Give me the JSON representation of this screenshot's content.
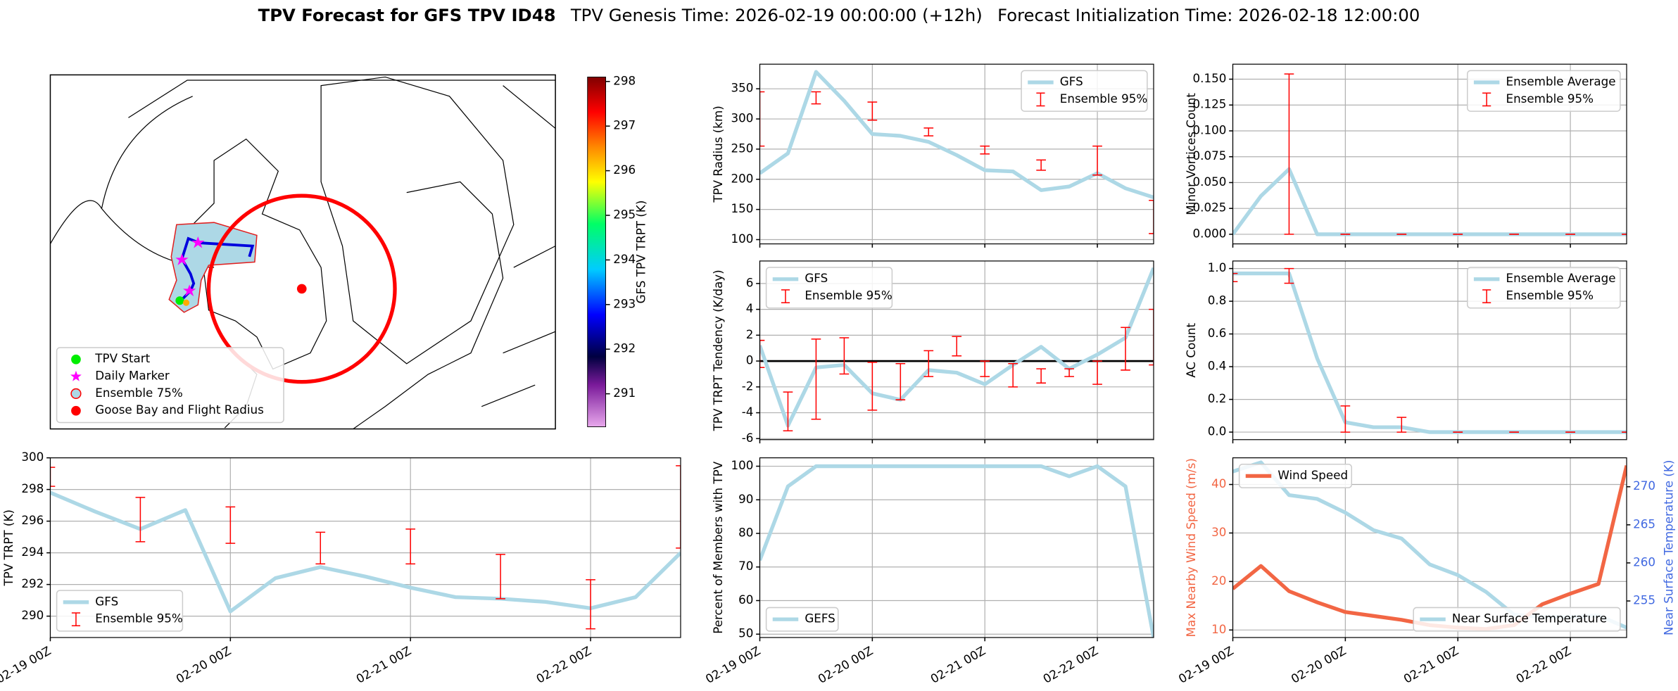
{
  "header": {
    "title": "TPV Forecast for GFS TPV ID48",
    "genesis": "TPV Genesis Time: 2026-02-19 00:00:00 (+12h)",
    "init": "Forecast Initialization Time: 2026-02-18 12:00:00"
  },
  "chart_data": [
    {
      "type": "map",
      "legend": [
        {
          "name": "TPV Start",
          "marker": "circle",
          "color": "#00ee00"
        },
        {
          "name": "Daily Marker",
          "marker": "star",
          "color": "#ff00ff"
        },
        {
          "name": "Ensemble 75%",
          "marker": "circle",
          "color": "#add8e6",
          "edgecolor": "#ff0000"
        },
        {
          "name": "Goose Bay and Flight Radius",
          "marker": "circle",
          "color": "#ff0000"
        }
      ],
      "colorbar": {
        "label": "GFS TPV TRPT (K)",
        "ylim": [
          290.26,
          298.1
        ],
        "yticks": [
          291,
          292,
          293,
          294,
          295,
          296,
          297,
          298
        ]
      }
    },
    {
      "type": "line",
      "ylabel": "TPV TRPT (K)",
      "grid": true,
      "legend": "lower left",
      "xtick_labels": true,
      "xlim": [
        "02-19 00Z",
        "02-22 12Z"
      ],
      "xticks": [
        "02-19 00Z",
        "02-20 00Z",
        "02-21 00Z",
        "02-22 00Z"
      ],
      "ylim": [
        288.65,
        300
      ],
      "yticks": [
        290,
        292,
        294,
        296,
        298,
        300
      ],
      "x": [
        "02-19 00Z",
        "02-19 06Z",
        "02-19 12Z",
        "02-19 18Z",
        "02-20 00Z",
        "02-20 06Z",
        "02-20 12Z",
        "02-20 18Z",
        "02-21 00Z",
        "02-21 06Z",
        "02-21 12Z",
        "02-21 18Z",
        "02-22 00Z",
        "02-22 06Z",
        "02-22 12Z"
      ],
      "series": [
        {
          "name": "GFS",
          "color": "#add8e6",
          "values": [
            297.8,
            296.6,
            295.5,
            296.7,
            290.3,
            292.4,
            293.1,
            292.5,
            291.8,
            291.2,
            291.1,
            290.9,
            290.5,
            291.2,
            294.0
          ]
        }
      ],
      "errorbars": {
        "name": "Ensemble 95%",
        "color": "#ff0000",
        "x": [
          "02-19 00Z",
          "02-19 12Z",
          "02-20 00Z",
          "02-20 12Z",
          "02-21 00Z",
          "02-21 12Z",
          "02-22 00Z",
          "02-22 12Z"
        ],
        "low": [
          298.2,
          294.7,
          294.6,
          293.3,
          293.3,
          291.1,
          289.2,
          294.3
        ],
        "high": [
          299.4,
          297.5,
          296.9,
          295.3,
          295.5,
          293.9,
          292.3,
          299.5
        ]
      }
    },
    {
      "type": "line",
      "ylabel": "TPV Radius (km)",
      "grid": true,
      "legend": "upper right",
      "xtick_labels": false,
      "xlim": [
        "02-19 00Z",
        "02-22 12Z"
      ],
      "xticks": [
        "02-19 00Z",
        "02-20 00Z",
        "02-21 00Z",
        "02-22 00Z"
      ],
      "ylim": [
        92.9,
        390.8
      ],
      "yticks": [
        100,
        150,
        200,
        250,
        300,
        350
      ],
      "x": [
        "02-19 00Z",
        "02-19 06Z",
        "02-19 12Z",
        "02-19 18Z",
        "02-20 00Z",
        "02-20 06Z",
        "02-20 12Z",
        "02-20 18Z",
        "02-21 00Z",
        "02-21 06Z",
        "02-21 12Z",
        "02-21 18Z",
        "02-22 00Z",
        "02-22 06Z",
        "02-22 12Z"
      ],
      "series": [
        {
          "name": "GFS",
          "color": "#add8e6",
          "values": [
            210,
            243,
            378,
            330,
            275,
            272,
            262,
            240,
            215,
            213,
            182,
            188,
            210,
            185,
            170
          ]
        }
      ],
      "errorbars": {
        "name": "Ensemble 95%",
        "color": "#ff0000",
        "x": [
          "02-19 00Z",
          "02-19 12Z",
          "02-20 00Z",
          "02-20 12Z",
          "02-21 00Z",
          "02-21 12Z",
          "02-22 00Z",
          "02-22 12Z"
        ],
        "low": [
          255,
          325,
          298,
          272,
          242,
          215,
          207,
          110
        ],
        "high": [
          345,
          345,
          328,
          285,
          255,
          232,
          255,
          165
        ]
      }
    },
    {
      "type": "line",
      "ylabel": "TPV TRPT Tendency (K/day)",
      "grid": true,
      "legend": "upper left",
      "xtick_labels": false,
      "hline": 0,
      "xlim": [
        "02-19 00Z",
        "02-22 12Z"
      ],
      "xticks": [
        "02-19 00Z",
        "02-20 00Z",
        "02-21 00Z",
        "02-22 00Z"
      ],
      "ylim": [
        -6.08,
        7.74
      ],
      "yticks": [
        -6,
        -4,
        -2,
        0,
        2,
        4,
        6
      ],
      "x": [
        "02-19 00Z",
        "02-19 06Z",
        "02-19 12Z",
        "02-19 18Z",
        "02-20 00Z",
        "02-20 06Z",
        "02-20 12Z",
        "02-20 18Z",
        "02-21 00Z",
        "02-21 06Z",
        "02-21 12Z",
        "02-21 18Z",
        "02-22 00Z",
        "02-22 06Z",
        "02-22 12Z"
      ],
      "series": [
        {
          "name": "GFS",
          "color": "#add8e6",
          "values": [
            1.2,
            -5.0,
            -0.5,
            -0.3,
            -2.5,
            -3.0,
            -0.7,
            -0.9,
            -1.8,
            -0.3,
            1.1,
            -0.6,
            0.5,
            1.8,
            7.2
          ]
        }
      ],
      "errorbars": {
        "name": "Ensemble 95%",
        "color": "#ff0000",
        "x": [
          "02-19 00Z",
          "02-19 06Z",
          "02-19 12Z",
          "02-19 18Z",
          "02-20 00Z",
          "02-20 06Z",
          "02-20 12Z",
          "02-20 18Z",
          "02-21 00Z",
          "02-21 06Z",
          "02-21 12Z",
          "02-21 18Z",
          "02-22 00Z",
          "02-22 06Z",
          "02-22 12Z"
        ],
        "low": [
          -0.5,
          -5.4,
          -4.5,
          -1.0,
          -3.8,
          -3.0,
          -1.2,
          0.4,
          -1.2,
          -2.0,
          -1.7,
          -1.2,
          -1.8,
          -0.7,
          -0.3
        ],
        "high": [
          1.6,
          -2.4,
          1.7,
          1.8,
          -0.1,
          -0.2,
          0.8,
          1.9,
          0.0,
          -0.2,
          -0.6,
          -0.6,
          0.0,
          2.6,
          4.0
        ]
      }
    },
    {
      "type": "line",
      "ylabel": "Percent of Members with TPV",
      "grid": true,
      "legend": "lower left",
      "xtick_labels": true,
      "xlim": [
        "02-19 00Z",
        "02-22 12Z"
      ],
      "xticks": [
        "02-19 00Z",
        "02-20 00Z",
        "02-21 00Z",
        "02-22 00Z"
      ],
      "ylim": [
        49,
        102.5
      ],
      "yticks": [
        50,
        60,
        70,
        80,
        90,
        100
      ],
      "x": [
        "02-19 00Z",
        "02-19 06Z",
        "02-19 12Z",
        "02-19 18Z",
        "02-20 00Z",
        "02-20 06Z",
        "02-20 12Z",
        "02-20 18Z",
        "02-21 00Z",
        "02-21 06Z",
        "02-21 12Z",
        "02-21 18Z",
        "02-22 00Z",
        "02-22 06Z",
        "02-22 12Z"
      ],
      "series": [
        {
          "name": "GEFS",
          "color": "#add8e6",
          "values": [
            72,
            94,
            100,
            100,
            100,
            100,
            100,
            100,
            100,
            100,
            100,
            97,
            100,
            94,
            49
          ]
        }
      ]
    },
    {
      "type": "line",
      "ylabel": "Minor Vortices Count",
      "grid": true,
      "legend": "upper right",
      "xtick_labels": false,
      "xlim": [
        "02-19 00Z",
        "02-22 12Z"
      ],
      "xticks": [
        "02-19 00Z",
        "02-20 00Z",
        "02-21 00Z",
        "02-22 00Z"
      ],
      "ylim": [
        -0.0093,
        0.1645
      ],
      "yticks": [
        {
          "value": 0,
          "label": "0.000"
        },
        {
          "value": 0.025,
          "label": "0.025"
        },
        {
          "value": 0.05,
          "label": "0.050"
        },
        {
          "value": 0.075,
          "label": "0.075"
        },
        {
          "value": 0.1,
          "label": "0.100"
        },
        {
          "value": 0.125,
          "label": "0.125"
        },
        {
          "value": 0.15,
          "label": "0.150"
        }
      ],
      "x": [
        "02-19 00Z",
        "02-19 06Z",
        "02-19 12Z",
        "02-19 18Z",
        "02-20 00Z",
        "02-20 06Z",
        "02-20 12Z",
        "02-20 18Z",
        "02-21 00Z",
        "02-21 06Z",
        "02-21 12Z",
        "02-21 18Z",
        "02-22 00Z",
        "02-22 06Z",
        "02-22 12Z"
      ],
      "series": [
        {
          "name": "Ensemble Average",
          "color": "#add8e6",
          "values": [
            0,
            0.037,
            0.063,
            0,
            0,
            0,
            0,
            0,
            0,
            0,
            0,
            0,
            0,
            0,
            0
          ]
        }
      ],
      "errorbars": {
        "name": "Ensemble 95%",
        "color": "#ff0000",
        "x": [
          "02-19 12Z",
          "02-20 00Z",
          "02-20 12Z",
          "02-21 00Z",
          "02-21 12Z",
          "02-22 00Z",
          "02-22 12Z"
        ],
        "low": [
          0,
          0,
          0,
          0,
          0,
          0,
          0
        ],
        "high": [
          0.155,
          0,
          0,
          0,
          0,
          0,
          0
        ]
      }
    },
    {
      "type": "line",
      "ylabel": "AC Count",
      "grid": true,
      "legend": "upper right",
      "xtick_labels": false,
      "xlim": [
        "02-19 00Z",
        "02-22 12Z"
      ],
      "xticks": [
        "02-19 00Z",
        "02-20 00Z",
        "02-21 00Z",
        "02-22 00Z"
      ],
      "ylim": [
        -0.046,
        1.046
      ],
      "yticks": [
        {
          "value": 0,
          "label": "0.0"
        },
        {
          "value": 0.2,
          "label": "0.2"
        },
        {
          "value": 0.4,
          "label": "0.4"
        },
        {
          "value": 0.6,
          "label": "0.6"
        },
        {
          "value": 0.8,
          "label": "0.8"
        },
        {
          "value": 1,
          "label": "1.0"
        }
      ],
      "x": [
        "02-19 00Z",
        "02-19 06Z",
        "02-19 12Z",
        "02-19 18Z",
        "02-20 00Z",
        "02-20 06Z",
        "02-20 12Z",
        "02-20 18Z",
        "02-21 00Z",
        "02-21 06Z",
        "02-21 12Z",
        "02-21 18Z",
        "02-22 00Z",
        "02-22 06Z",
        "02-22 12Z"
      ],
      "series": [
        {
          "name": "Ensemble Average",
          "color": "#add8e6",
          "values": [
            0.97,
            0.97,
            0.97,
            0.45,
            0.06,
            0.03,
            0.03,
            0,
            0,
            0,
            0,
            0,
            0,
            0,
            0
          ]
        }
      ],
      "errorbars": {
        "name": "Ensemble 95%",
        "color": "#ff0000",
        "x": [
          "02-19 00Z",
          "02-19 12Z",
          "02-20 00Z",
          "02-20 12Z",
          "02-21 00Z",
          "02-21 12Z",
          "02-22 00Z",
          "02-22 12Z"
        ],
        "low": [
          0.92,
          0.91,
          0,
          0,
          0,
          0,
          0,
          0
        ],
        "high": [
          0.97,
          1.0,
          0.16,
          0.09,
          0,
          0,
          0,
          0
        ]
      }
    },
    {
      "type": "line",
      "ylabel": "Max Nearby Wind Speed (m/s)",
      "y_color": "#f26644",
      "y2label": "Near Surface Temperature (K)",
      "y2_color": "#4169e1",
      "grid": true,
      "legend": "upper left",
      "xtick_labels": true,
      "xlim": [
        "02-19 00Z",
        "02-22 12Z"
      ],
      "xticks": [
        "02-19 00Z",
        "02-20 00Z",
        "02-21 00Z",
        "02-22 00Z"
      ],
      "ylim": [
        8.45,
        45.5
      ],
      "yticks": [
        10,
        20,
        30,
        40
      ],
      "y2lim": [
        250.2,
        273.8
      ],
      "y2ticks": [
        255,
        260,
        265,
        270
      ],
      "x": [
        "02-19 00Z",
        "02-19 06Z",
        "02-19 12Z",
        "02-19 18Z",
        "02-20 00Z",
        "02-20 06Z",
        "02-20 12Z",
        "02-20 18Z",
        "02-21 00Z",
        "02-21 06Z",
        "02-21 12Z",
        "02-21 18Z",
        "02-22 00Z",
        "02-22 06Z",
        "02-22 12Z"
      ],
      "series": [
        {
          "name": "Near Surface Temperature",
          "color": "#add8e6",
          "axis": "y2",
          "legend": "lower right",
          "values": [
            272.0,
            273.2,
            268.9,
            268.4,
            266.6,
            264.3,
            263.2,
            259.8,
            258.4,
            256.2,
            253.2,
            252.9,
            252.9,
            253.1,
            251.5
          ]
        },
        {
          "name": "Wind Speed",
          "color": "#f26644",
          "values": [
            18.5,
            23.2,
            18.0,
            15.7,
            13.7,
            12.9,
            12.1,
            11.0,
            10.5,
            10.2,
            11.0,
            15.3,
            17.5,
            19.5,
            43.9
          ]
        }
      ]
    }
  ]
}
